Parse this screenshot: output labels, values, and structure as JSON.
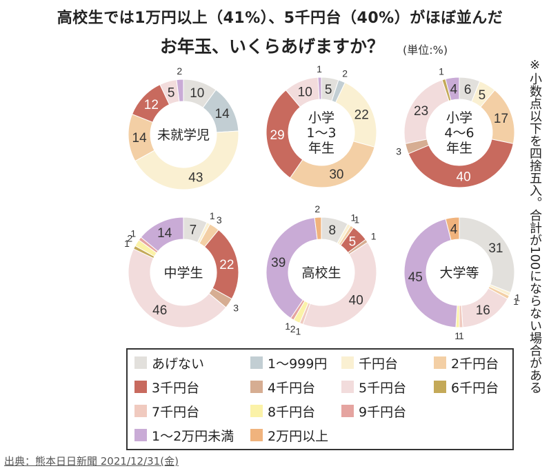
{
  "headline": "高校生では1万円以上（41%）、5千円台（40%）がほぼ並んだ",
  "title": "お年玉、いくらあげますか？",
  "unit_label": "(単位:%)",
  "note": "※小数点以下を四捨五入。合計が100にならない場合がある",
  "source": "出典：熊本日日新聞 2021/12/31(金)",
  "colors": {
    "none": "#e2e0dc",
    "1-999": "#c2ced3",
    "1k": "#faf0d2",
    "2k": "#f3cfa5",
    "3k": "#c86a5e",
    "4k": "#d6ad92",
    "5k": "#f2dcdc",
    "6k": "#c4a958",
    "7k": "#f0cabf",
    "8k": "#fbf2a8",
    "9k": "#e5a4a0",
    "10-20k": "#c9abd6",
    "20k+": "#f0b37d"
  },
  "legend": [
    {
      "key": "none",
      "label": "あげない"
    },
    {
      "key": "1-999",
      "label": "1～999円"
    },
    {
      "key": "1k",
      "label": "千円台"
    },
    {
      "key": "2k",
      "label": "2千円台"
    },
    {
      "key": "3k",
      "label": "3千円台"
    },
    {
      "key": "4k",
      "label": "4千円台"
    },
    {
      "key": "5k",
      "label": "5千円台"
    },
    {
      "key": "6k",
      "label": "6千円台"
    },
    {
      "key": "7k",
      "label": "7千円台"
    },
    {
      "key": "8k",
      "label": "8千円台"
    },
    {
      "key": "9k",
      "label": "9千円台"
    },
    {
      "key": "10-20k",
      "label": "1～2万円未満"
    },
    {
      "key": "20k+",
      "label": "2万円以上"
    }
  ],
  "chart_data": [
    {
      "type": "pie",
      "title": "未就学児",
      "title_lines": [
        "未就学児"
      ],
      "slices": [
        {
          "key": "none",
          "value": 10
        },
        {
          "key": "1-999",
          "value": 14
        },
        {
          "key": "1k",
          "value": 43
        },
        {
          "key": "2k",
          "value": 14
        },
        {
          "key": "3k",
          "value": 12
        },
        {
          "key": "5k",
          "value": 5
        },
        {
          "key": "10-20k",
          "value": 2
        }
      ]
    },
    {
      "type": "pie",
      "title": "小学1～3年生",
      "title_lines": [
        "小学",
        "1～3",
        "年生"
      ],
      "slices": [
        {
          "key": "none",
          "value": 5
        },
        {
          "key": "1-999",
          "value": 2
        },
        {
          "key": "1k",
          "value": 22
        },
        {
          "key": "2k",
          "value": 30
        },
        {
          "key": "3k",
          "value": 29
        },
        {
          "key": "5k",
          "value": 10
        },
        {
          "key": "10-20k",
          "value": 1
        }
      ]
    },
    {
      "type": "pie",
      "title": "小学4～6年生",
      "title_lines": [
        "小学",
        "4～6",
        "年生"
      ],
      "slices": [
        {
          "key": "none",
          "value": 6
        },
        {
          "key": "1k",
          "value": 5
        },
        {
          "key": "2k",
          "value": 17
        },
        {
          "key": "3k",
          "value": 40
        },
        {
          "key": "4k",
          "value": 3
        },
        {
          "key": "5k",
          "value": 23
        },
        {
          "key": "6k",
          "value": 1
        },
        {
          "key": "10-20k",
          "value": 4
        }
      ]
    },
    {
      "type": "pie",
      "title": "中学生",
      "title_lines": [
        "中学生"
      ],
      "slices": [
        {
          "key": "none",
          "value": 7
        },
        {
          "key": "1k",
          "value": 1
        },
        {
          "key": "2k",
          "value": 3
        },
        {
          "key": "3k",
          "value": 22
        },
        {
          "key": "4k",
          "value": 3
        },
        {
          "key": "5k",
          "value": 46
        },
        {
          "key": "6k",
          "value": 1
        },
        {
          "key": "8k",
          "value": 2
        },
        {
          "key": "9k",
          "value": 1
        },
        {
          "key": "10-20k",
          "value": 14
        }
      ]
    },
    {
      "type": "pie",
      "title": "高校生",
      "title_lines": [
        "高校生"
      ],
      "slices": [
        {
          "key": "none",
          "value": 8
        },
        {
          "key": "1k",
          "value": 1
        },
        {
          "key": "2k",
          "value": 1
        },
        {
          "key": "3k",
          "value": 5
        },
        {
          "key": "4k",
          "value": 1
        },
        {
          "key": "5k",
          "value": 40
        },
        {
          "key": "7k",
          "value": 1
        },
        {
          "key": "8k",
          "value": 2
        },
        {
          "key": "9k",
          "value": 1
        },
        {
          "key": "10-20k",
          "value": 39
        },
        {
          "key": "20k+",
          "value": 2
        }
      ]
    },
    {
      "type": "pie",
      "title": "大学等",
      "title_lines": [
        "大学等"
      ],
      "slices": [
        {
          "key": "none",
          "value": 31
        },
        {
          "key": "1k",
          "value": 1
        },
        {
          "key": "2k",
          "value": 1
        },
        {
          "key": "5k",
          "value": 16
        },
        {
          "key": "7k",
          "value": 1
        },
        {
          "key": "8k",
          "value": 1
        },
        {
          "key": "10-20k",
          "value": 45
        },
        {
          "key": "20k+",
          "value": 4
        }
      ]
    }
  ]
}
